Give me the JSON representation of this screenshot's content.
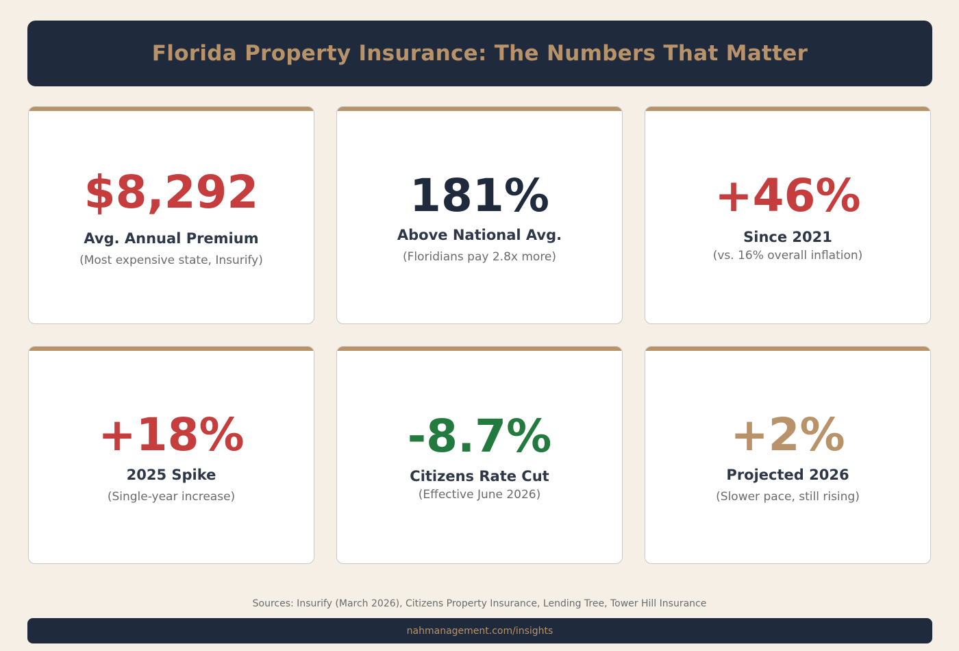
{
  "header": {
    "title": "Florida Property Insurance: The Numbers That Matter"
  },
  "colors": {
    "background": "#f5efe6",
    "navy": "#1f2a3c",
    "tan": "#b8936a",
    "red": "#c53d3d",
    "green": "#237a3e"
  },
  "cards": [
    {
      "value": "$8,292",
      "label": "Avg. Annual Premium",
      "sub": "(Most expensive state, Insurify)",
      "value_color": "red"
    },
    {
      "value": "181%",
      "label": "Above National Avg.",
      "sub": "(Floridians pay 2.8x more)",
      "value_color": "navy"
    },
    {
      "value": "+46%",
      "label": "Since 2021",
      "sub": "(vs. 16% overall inflation)",
      "value_color": "red"
    },
    {
      "value": "+18%",
      "label": "2025 Spike",
      "sub": "(Single-year increase)",
      "value_color": "red"
    },
    {
      "value": "-8.7%",
      "label": "Citizens Rate Cut",
      "sub": "(Effective June 2026)",
      "value_color": "green"
    },
    {
      "value": "+2%",
      "label": "Projected 2026",
      "sub": "(Slower pace, still rising)",
      "value_color": "tan"
    }
  ],
  "sources": "Sources: Insurify (March 2026), Citizens Property Insurance, Lending Tree, Tower Hill Insurance",
  "footer": {
    "link": "nahmanagement.com/insights"
  }
}
